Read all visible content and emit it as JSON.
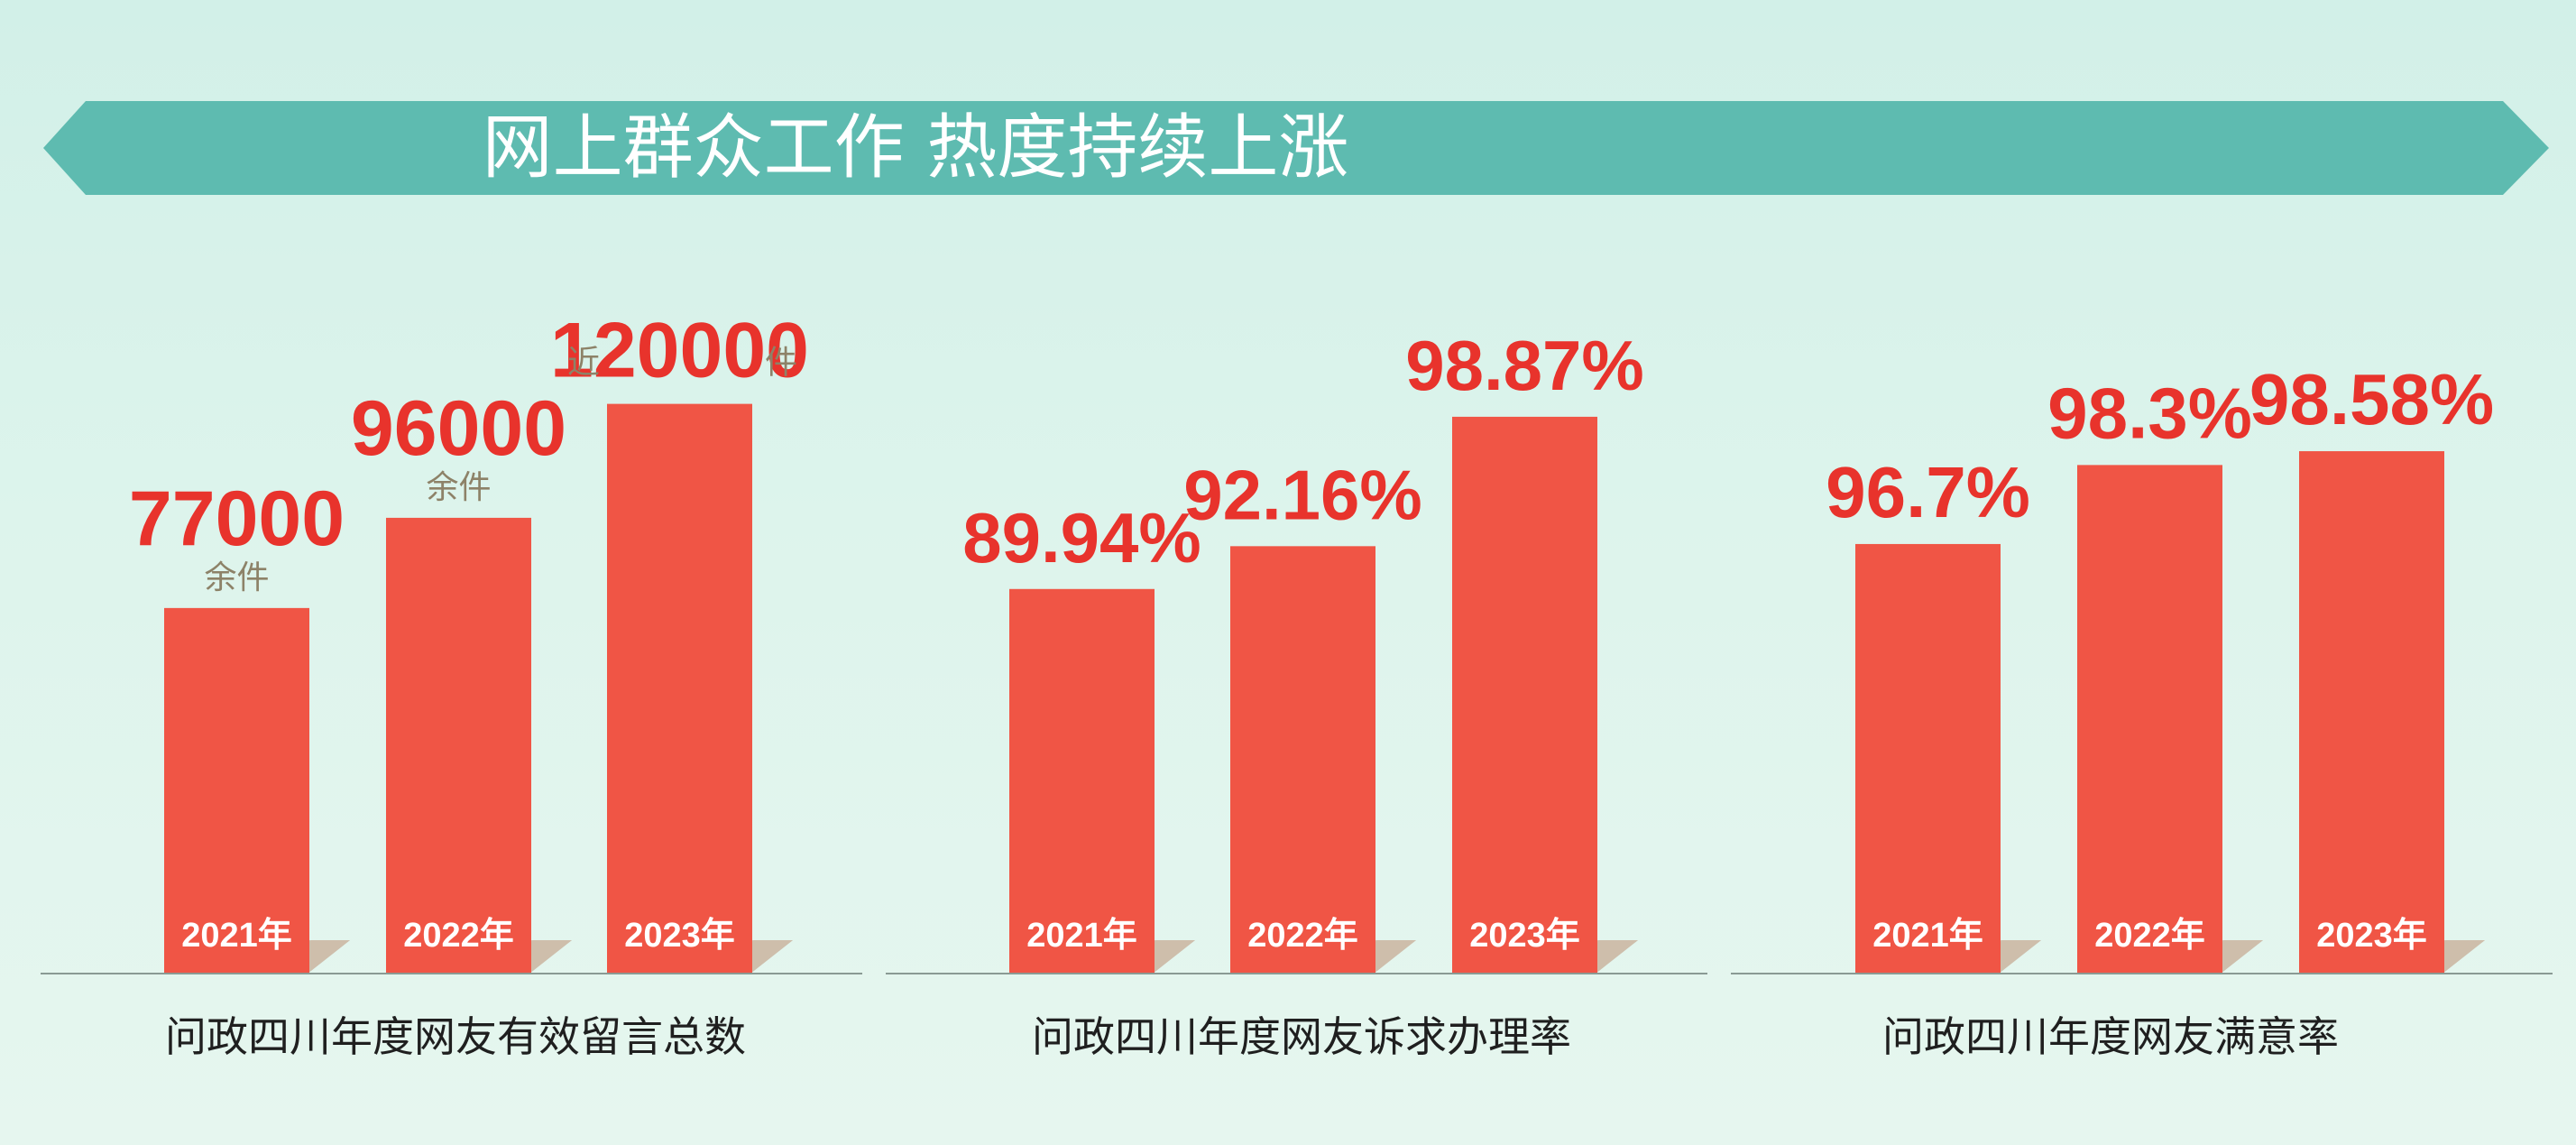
{
  "banner": {
    "title": "网上群众工作  热度持续上涨",
    "color": "#5ebbb0"
  },
  "colors": {
    "bar": "#f05545",
    "value_text": "#e8332c",
    "unit_text": "#8d8268",
    "shadow": "#cdbcaa",
    "baseline": "#8a9a94"
  },
  "chart_data": [
    {
      "type": "bar",
      "title": "问政四川年度网友有效留言总数",
      "categories": [
        "2021年",
        "2022年",
        "2023年"
      ],
      "values": [
        77000,
        96000,
        120000
      ],
      "value_labels": [
        "77000",
        "96000",
        "120000"
      ],
      "label_prefix": [
        "",
        "",
        "近"
      ],
      "label_suffix": [
        "",
        "",
        "件"
      ],
      "unit_below": [
        "余件",
        "余件",
        ""
      ],
      "ylim": [
        0,
        130000
      ]
    },
    {
      "type": "bar",
      "title": "问政四川年度网友诉求办理率",
      "categories": [
        "2021年",
        "2022年",
        "2023年"
      ],
      "values": [
        89.94,
        92.16,
        98.87
      ],
      "value_labels": [
        "89.94%",
        "92.16%",
        "98.87%"
      ],
      "ylim": [
        70,
        102
      ]
    },
    {
      "type": "bar",
      "title": "问政四川年度网友满意率",
      "categories": [
        "2021年",
        "2022年",
        "2023年"
      ],
      "values": [
        96.7,
        98.3,
        98.58
      ],
      "value_labels": [
        "96.7%",
        "98.3%",
        "98.58%"
      ],
      "ylim": [
        88,
        100.5
      ]
    }
  ]
}
